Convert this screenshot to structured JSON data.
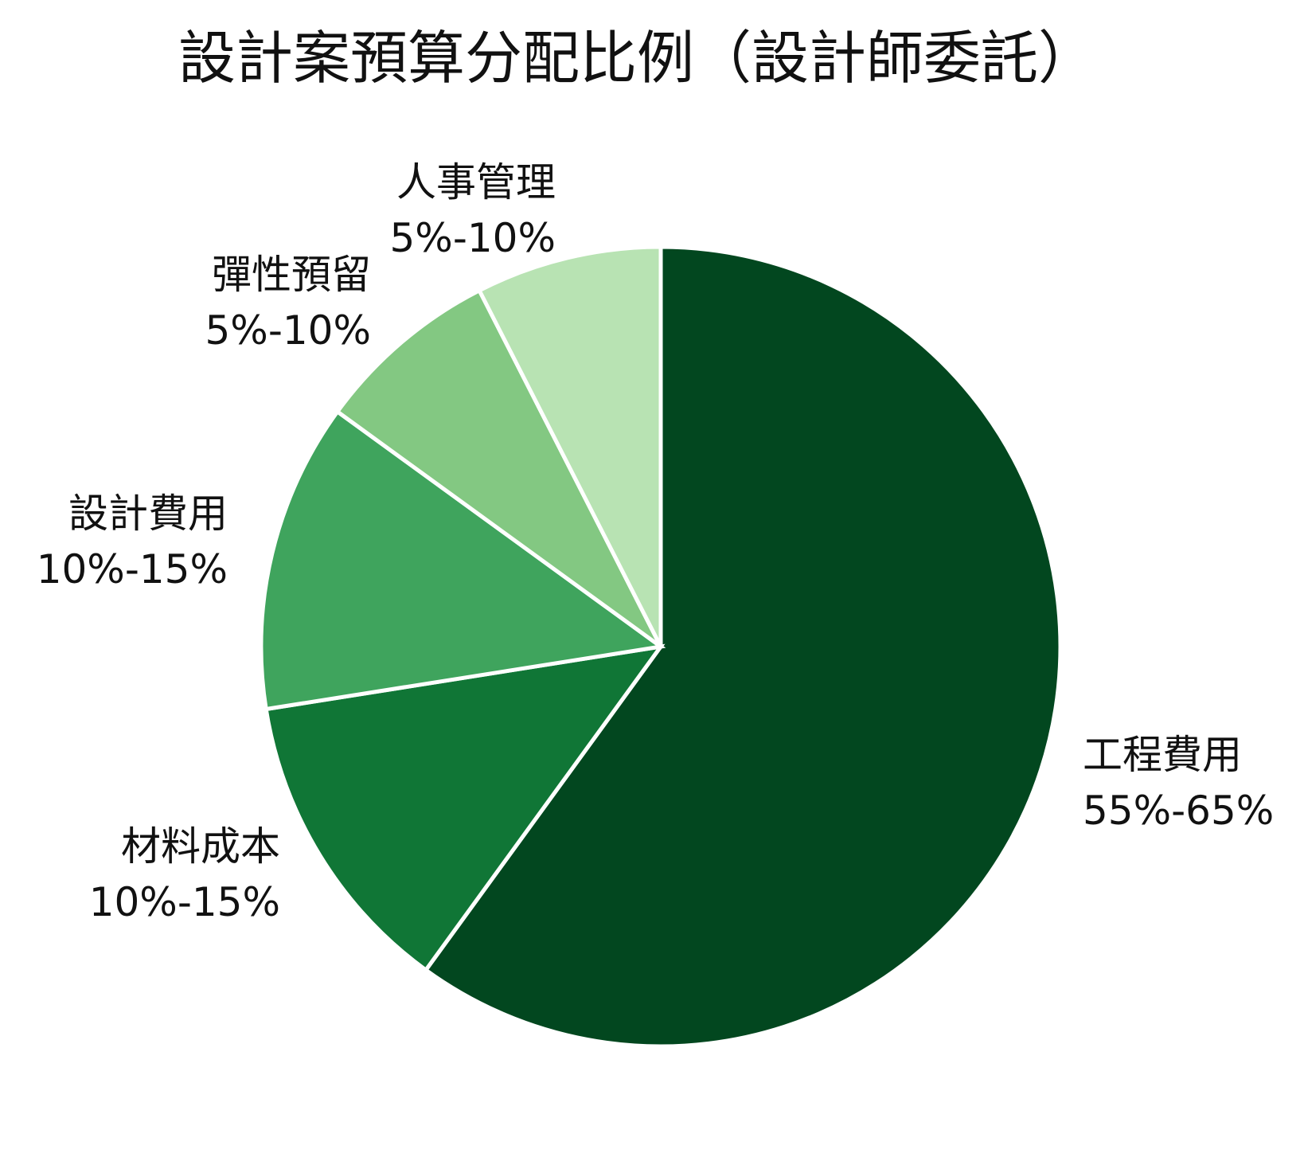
{
  "chart_data": {
    "type": "pie",
    "title": "設計案預算分配比例（設計師委託）",
    "start": "12 o'clock",
    "direction": "clockwise",
    "slices": [
      {
        "name": "工程費用",
        "range": "55%-65%",
        "value": 60,
        "color": "#02471f"
      },
      {
        "name": "材料成本",
        "range": "10%-15%",
        "value": 12.5,
        "color": "#107636"
      },
      {
        "name": "設計費用",
        "range": "10%-15%",
        "value": 12.5,
        "color": "#3fa45d"
      },
      {
        "name": "彈性預留",
        "range": "5%-10%",
        "value": 7.5,
        "color": "#83c882"
      },
      {
        "name": "人事管理",
        "range": "5%-10%",
        "value": 7.5,
        "color": "#b8e3b3"
      }
    ]
  }
}
